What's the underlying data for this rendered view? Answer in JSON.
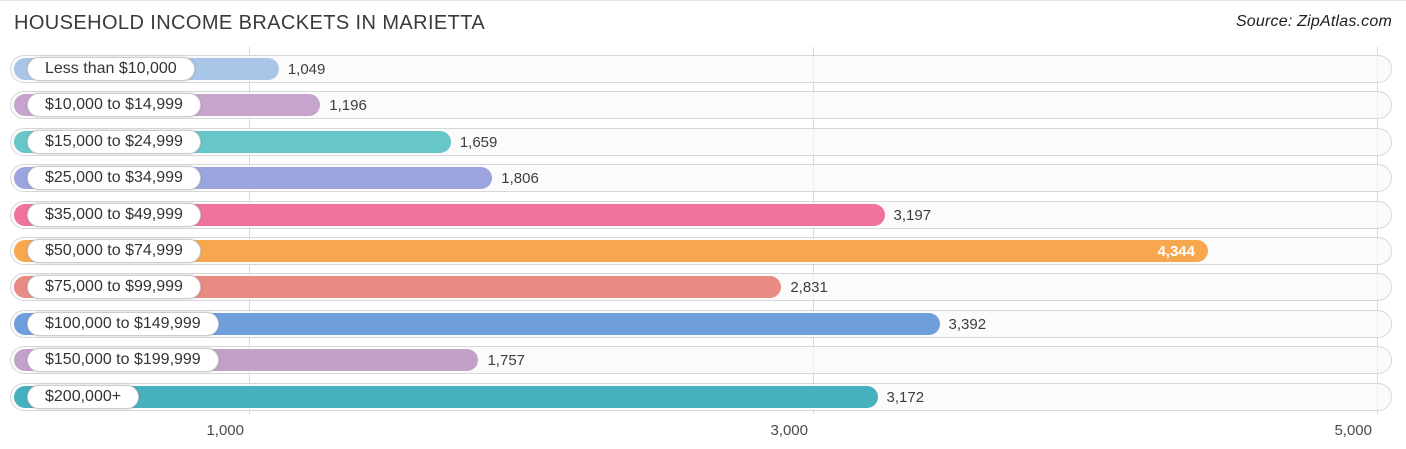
{
  "header": {
    "title": "HOUSEHOLD INCOME BRACKETS IN MARIETTA",
    "source": "Source: ZipAtlas.com"
  },
  "chart_data": {
    "type": "bar",
    "orientation": "horizontal",
    "title": "HOUSEHOLD INCOME BRACKETS IN MARIETTA",
    "source": "Source: ZipAtlas.com",
    "categories": [
      "Less than $10,000",
      "$10,000 to $14,999",
      "$15,000 to $24,999",
      "$25,000 to $34,999",
      "$35,000 to $49,999",
      "$50,000 to $74,999",
      "$75,000 to $99,999",
      "$100,000 to $149,999",
      "$150,000 to $199,999",
      "$200,000+"
    ],
    "values": [
      1049,
      1196,
      1659,
      1806,
      3197,
      4344,
      2831,
      3392,
      1757,
      3172
    ],
    "value_labels": [
      "1,049",
      "1,196",
      "1,659",
      "1,806",
      "3,197",
      "4,344",
      "2,831",
      "3,392",
      "1,757",
      "3,172"
    ],
    "bar_colors": [
      "#a9c6e9",
      "#c6a4cc",
      "#66c6c8",
      "#9ba4de",
      "#f1729f",
      "#f7a74e",
      "#e88b82",
      "#6f9edc",
      "#c2a0c8",
      "#47b0bd"
    ],
    "value_inside": [
      false,
      false,
      false,
      false,
      false,
      true,
      false,
      false,
      false,
      false
    ],
    "xlabel": "",
    "ylabel": "",
    "xlim": [
      0,
      5000
    ],
    "x_ticks": [
      1000,
      3000,
      5000
    ],
    "x_tick_labels": [
      "1,000",
      "3,000",
      "5,000"
    ],
    "grid": true,
    "legend": false
  }
}
